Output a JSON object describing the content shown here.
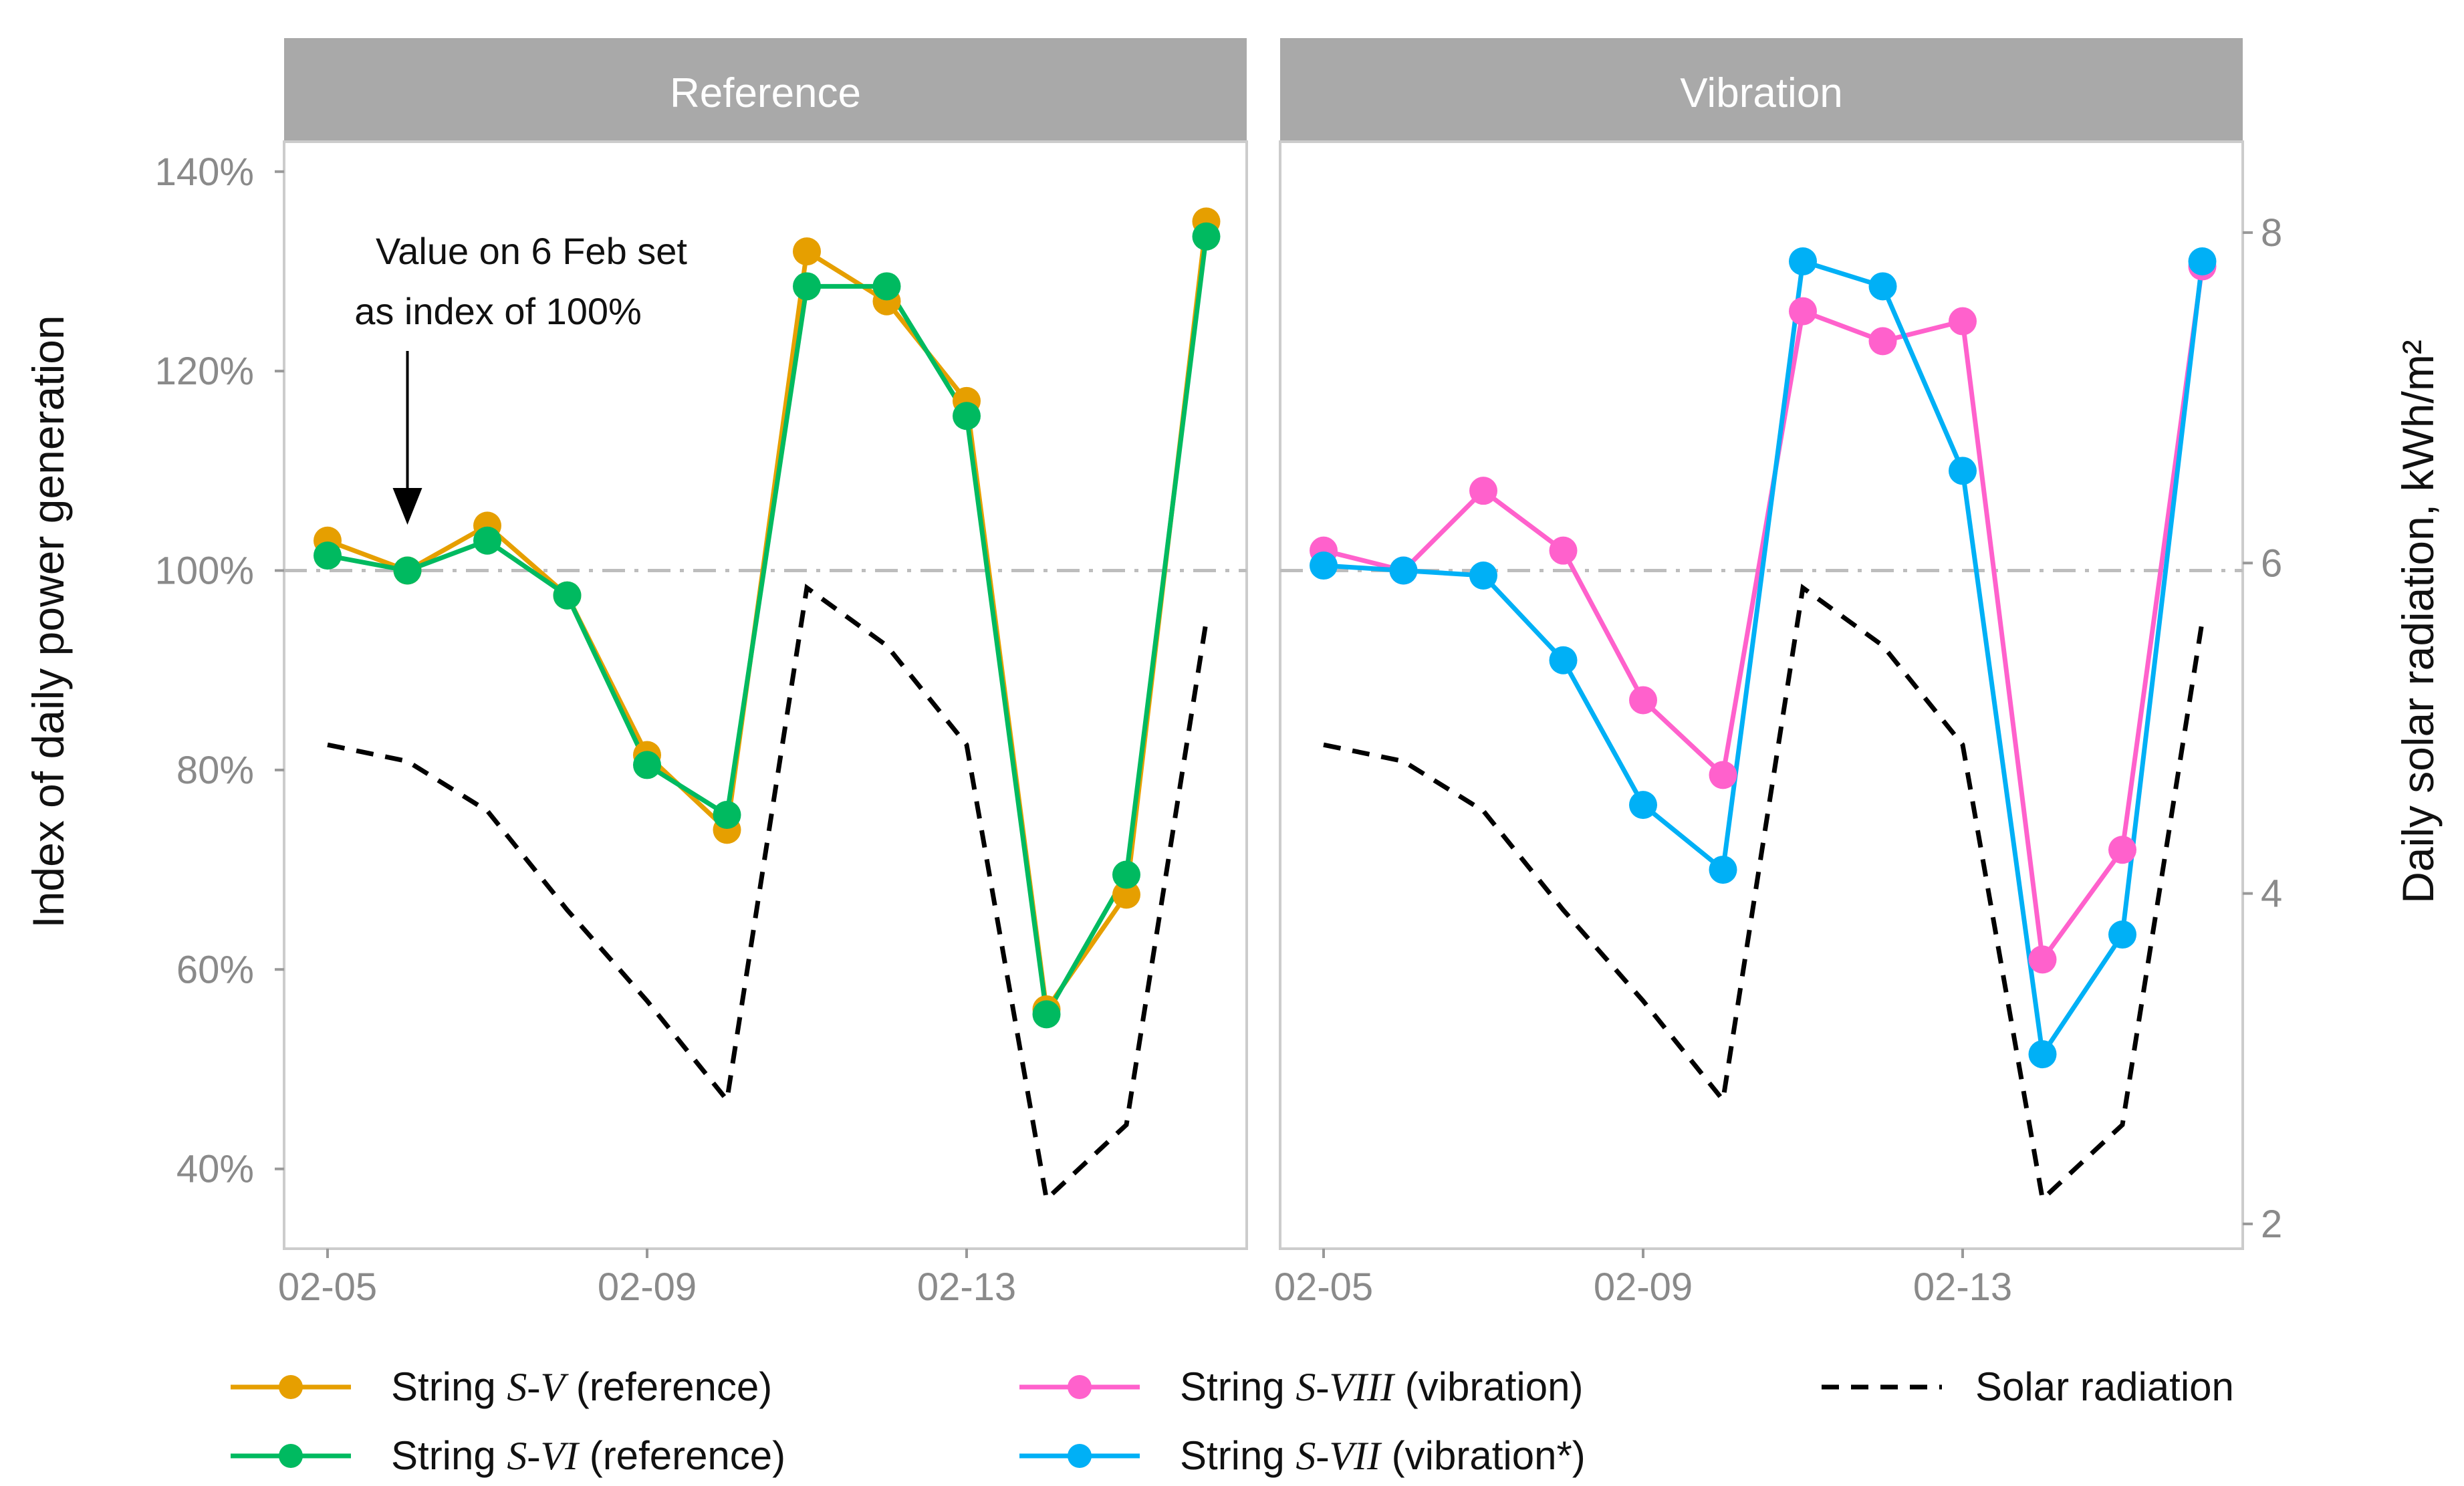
{
  "chart_data": {
    "type": "line",
    "x": [
      "02-05",
      "02-06",
      "02-07",
      "02-08",
      "02-09",
      "02-10",
      "02-11",
      "02-12",
      "02-13",
      "02-14",
      "02-15",
      "02-16"
    ],
    "x_ticks": [
      "02-05",
      "02-09",
      "02-13"
    ],
    "ylabel": "Index of daily power generation",
    "y_ticks": [
      "40%",
      "60%",
      "80%",
      "100%",
      "120%",
      "140%"
    ],
    "ylim": [
      32,
      143
    ],
    "y2label": "Daily solar radiation, kWh/m²",
    "y2_ticks": [
      "2",
      "4",
      "6",
      "8"
    ],
    "y2lim": [
      1.85,
      8.55
    ],
    "reference_line": 100,
    "solar_radiation": [
      4.9,
      4.8,
      4.5,
      3.9,
      3.35,
      2.75,
      5.85,
      5.5,
      4.9,
      2.15,
      2.6,
      5.65
    ],
    "panels": [
      {
        "label": "Reference",
        "annotation": [
          "Value on 6 Feb set",
          "as index of 100%"
        ],
        "series": [
          {
            "name_prefix": "String ",
            "name_symbol": "S-V",
            "name_suffix": " (reference)",
            "color": "#E69F00",
            "values": [
              103,
              100,
              104.5,
              97.5,
              81.5,
              74,
              132,
              127,
              117,
              56,
              67.5,
              135
            ]
          },
          {
            "name_prefix": "String ",
            "name_symbol": "S-VI",
            "name_suffix": " (reference)",
            "color": "#00BA60",
            "values": [
              101.5,
              100,
              103,
              97.5,
              80.5,
              75.5,
              128.5,
              128.5,
              115.5,
              55.5,
              69.5,
              133.5
            ]
          }
        ]
      },
      {
        "label": "Vibration",
        "series": [
          {
            "name_prefix": "String ",
            "name_symbol": "S-VIII",
            "name_suffix": " (vibration)",
            "color": "#FF61CC",
            "values": [
              102,
              100,
              108,
              102,
              87,
              79.5,
              126,
              123,
              125,
              61,
              72,
              130.5
            ]
          },
          {
            "name_prefix": "String ",
            "name_symbol": "S-VII",
            "name_suffix": " (vibration*)",
            "color": "#00B0F6",
            "values": [
              100.5,
              100,
              99.5,
              91,
              76.5,
              70,
              131,
              128.5,
              110,
              51.5,
              63.5,
              131
            ]
          }
        ]
      }
    ],
    "legend": {
      "solar_label": "Solar radiation"
    }
  }
}
